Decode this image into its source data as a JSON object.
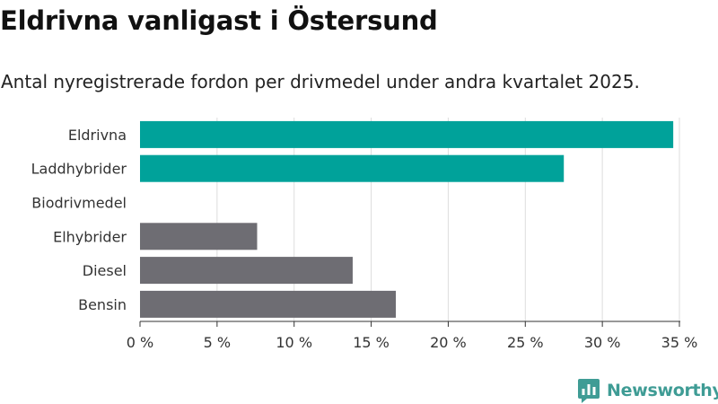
{
  "title": "Eldrivna vanligast i Östersund",
  "subtitle": "Antal nyregistrerade fordon per drivmedel under andra kvartalet 2025.",
  "brand": {
    "name": "Newsworthy",
    "logo_icon": "newsworthy-chart-logo-icon",
    "color": "#3f9c95"
  },
  "colors": {
    "highlight": "#00a29a",
    "other": "#6e6d73",
    "grid": "#dddddd",
    "axis": "#333333"
  },
  "chart_data": {
    "type": "bar",
    "orientation": "horizontal",
    "categories": [
      "Eldrivna",
      "Laddhybrider",
      "Biodrivmedel",
      "Elhybrider",
      "Diesel",
      "Bensin"
    ],
    "values": [
      34.6,
      27.5,
      0,
      7.6,
      13.8,
      16.6
    ],
    "highlighted": [
      true,
      true,
      false,
      false,
      false,
      false
    ],
    "unit": "%",
    "xlim": [
      0,
      35
    ],
    "ticks": [
      0,
      5,
      10,
      15,
      20,
      25,
      30,
      35
    ],
    "tick_labels": [
      "0 %",
      "5 %",
      "10 %",
      "15 %",
      "20 %",
      "25 %",
      "30 %",
      "35 %"
    ],
    "grid": true,
    "title": "Eldrivna vanligast i Östersund",
    "subtitle": "Antal nyregistrerade fordon per drivmedel under andra kvartalet 2025.",
    "xlabel": "",
    "ylabel": ""
  }
}
